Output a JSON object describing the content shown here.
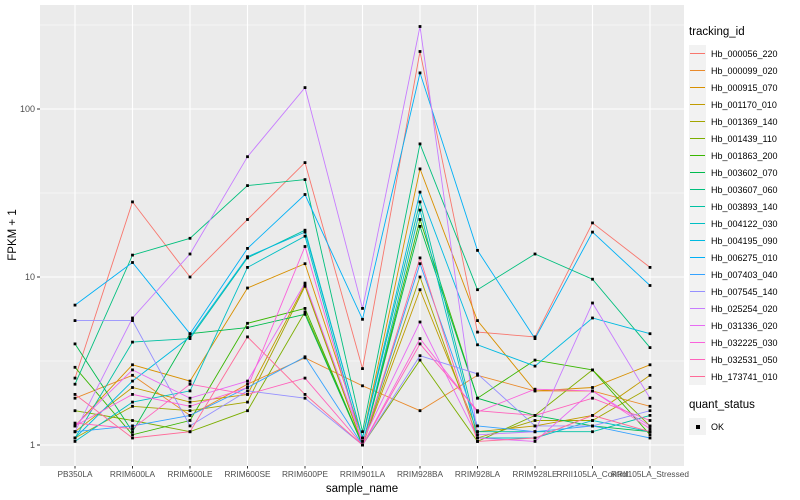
{
  "figure": {
    "xlabel": "sample_name",
    "ylabel": "FPKM + 1",
    "y_ticks": [
      "1",
      "10",
      "100"
    ]
  },
  "legend": {
    "tracking_title": "tracking_id",
    "quant_title": "quant_status",
    "quant_items": [
      {
        "label": "OK",
        "shape": "black-square-point"
      }
    ],
    "position": "right"
  },
  "chart_data": {
    "type": "line",
    "title": "",
    "xlabel": "sample_name",
    "ylabel": "FPKM + 1",
    "yscale": "log10",
    "ylim": [
      1,
      412
    ],
    "y_major_breaks": [
      1,
      10,
      100
    ],
    "y_minor_breaks": [
      3.162,
      31.62,
      316.2
    ],
    "grid": "white-on-grey",
    "panel_bg": "#EBEBEB",
    "grid_color": "#FFFFFF",
    "tick_text_color": "#4D4D4D",
    "point_shape": "black-square",
    "point_color": "#000000",
    "legend_position": "right",
    "x_categories": [
      "PB350LA",
      "RRIM600LA",
      "RRIM600LE",
      "RRIM600SE",
      "RRIM600PE",
      "RRIM901LA",
      "RRIM928BA",
      "RRIM928LA",
      "RRIM928LE",
      "RRII105LA_Control",
      "RRII105LA_Stressed"
    ],
    "series": [
      {
        "name": "Hb_000056_220",
        "color": "#F8766D",
        "values": [
          2.5,
          28,
          10,
          22,
          48,
          2.85,
          220,
          4.7,
          4.4,
          21,
          11.4
        ]
      },
      {
        "name": "Hb_000099_020",
        "color": "#E98A2B",
        "values": [
          1.9,
          2.6,
          1.5,
          2.3,
          3.3,
          2.25,
          1.6,
          2.6,
          2.1,
          2.1,
          1.7
        ]
      },
      {
        "name": "Hb_000915_070",
        "color": "#D89000",
        "values": [
          1.3,
          3.0,
          2.4,
          8.6,
          12,
          1.1,
          44,
          5.5,
          2.1,
          2.2,
          3.0
        ]
      },
      {
        "name": "Hb_001170_010",
        "color": "#C09B00",
        "values": [
          1.2,
          2.2,
          1.8,
          2.0,
          9.0,
          1.0,
          8.4,
          1.2,
          1.3,
          1.5,
          2.6
        ]
      },
      {
        "name": "Hb_001369_140",
        "color": "#A3A500",
        "values": [
          1.1,
          1.7,
          1.6,
          1.8,
          8.8,
          1.0,
          10,
          1.1,
          1.4,
          1.4,
          2.2
        ]
      },
      {
        "name": "Hb_001439_110",
        "color": "#7CAE00",
        "values": [
          1.6,
          1.4,
          1.2,
          1.6,
          6.2,
          1.0,
          3.2,
          1.05,
          1.5,
          2.8,
          1.3
        ]
      },
      {
        "name": "Hb_001863_200",
        "color": "#39B600",
        "values": [
          2.9,
          1.15,
          1.4,
          5.3,
          6.5,
          1.0,
          22,
          1.9,
          3.2,
          2.8,
          1.15
        ]
      },
      {
        "name": "Hb_003602_070",
        "color": "#00BB4E",
        "values": [
          4.0,
          1.2,
          4.6,
          5.0,
          6.0,
          1.0,
          20,
          1.9,
          1.5,
          1.3,
          1.2
        ]
      },
      {
        "name": "Hb_003607_060",
        "color": "#00BF7D",
        "values": [
          2.3,
          13.5,
          17,
          35,
          38,
          1.2,
          62,
          8.4,
          13.7,
          9.7,
          3.8
        ]
      },
      {
        "name": "Hb_003893_140",
        "color": "#00C1A3",
        "values": [
          1.1,
          4.1,
          4.3,
          13,
          19,
          1.1,
          28,
          1.2,
          1.2,
          1.2,
          1.5
        ]
      },
      {
        "name": "Hb_004122_030",
        "color": "#00BFC4",
        "values": [
          1.05,
          1.8,
          2.1,
          11.4,
          17.5,
          1.0,
          25,
          1.1,
          1.1,
          1.4,
          1.2
        ]
      },
      {
        "name": "Hb_004195_090",
        "color": "#00BAE0",
        "values": [
          1.1,
          2.4,
          4.4,
          13.2,
          18.5,
          1.1,
          32,
          3.95,
          2.95,
          5.7,
          4.6
        ]
      },
      {
        "name": "Hb_006275_010",
        "color": "#00B0F6",
        "values": [
          6.8,
          12.2,
          4.6,
          14.8,
          31,
          5.6,
          164,
          14.4,
          4.3,
          18.5,
          8.9
        ]
      },
      {
        "name": "Hb_007403_040",
        "color": "#35A2FF",
        "values": [
          1.2,
          1.3,
          1.5,
          2.2,
          3.35,
          1.0,
          12,
          1.3,
          1.2,
          1.3,
          1.1
        ]
      },
      {
        "name": "Hb_007545_140",
        "color": "#9590FF",
        "values": [
          5.5,
          5.5,
          1.3,
          2.1,
          1.9,
          1.0,
          3.4,
          2.65,
          1.3,
          1.3,
          1.6
        ]
      },
      {
        "name": "Hb_025254_020",
        "color": "#C77CFF",
        "values": [
          1.2,
          5.7,
          13.7,
          52,
          134,
          6.5,
          310,
          1.15,
          1.2,
          7.0,
          1.9
        ]
      },
      {
        "name": "Hb_031336_020",
        "color": "#E76BF3",
        "values": [
          1.3,
          2.8,
          1.9,
          2.4,
          9.2,
          1.05,
          5.4,
          1.1,
          1.05,
          2.1,
          1.3
        ]
      },
      {
        "name": "Hb_032225_030",
        "color": "#FA62DB",
        "values": [
          1.3,
          2.0,
          1.7,
          2.2,
          15.2,
          1.0,
          4.3,
          1.57,
          2.15,
          2.1,
          1.25
        ]
      },
      {
        "name": "Hb_032531_050",
        "color": "#FF62BC",
        "values": [
          1.35,
          1.25,
          2.3,
          2.0,
          2.5,
          1.0,
          4.0,
          1.6,
          1.5,
          1.9,
          1.4
        ]
      },
      {
        "name": "Hb_173741_010",
        "color": "#FF6A98",
        "values": [
          2.0,
          1.1,
          1.2,
          4.4,
          2.0,
          1.0,
          13,
          1.05,
          1.1,
          1.5,
          1.2
        ]
      }
    ]
  }
}
